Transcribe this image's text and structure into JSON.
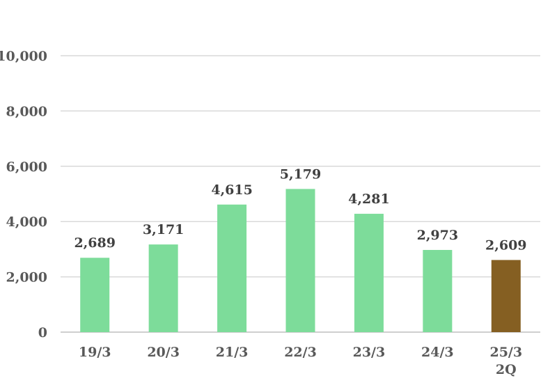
{
  "chart_data": {
    "type": "bar",
    "categories": [
      [
        "19/3"
      ],
      [
        "20/3"
      ],
      [
        "21/3"
      ],
      [
        "22/3"
      ],
      [
        "23/3"
      ],
      [
        "24/3"
      ],
      [
        "25/3",
        "2Q"
      ]
    ],
    "values": [
      2689,
      3171,
      4615,
      5179,
      4281,
      2973,
      2609
    ],
    "data_labels": [
      "2,689",
      "3,171",
      "4,615",
      "5,179",
      "4,281",
      "2,973",
      "2,609"
    ],
    "y_ticks": [
      0,
      2000,
      4000,
      6000,
      8000,
      10000
    ],
    "y_tick_labels": [
      "0",
      "2,000",
      "4,000",
      "6,000",
      "8,000",
      "10,000"
    ],
    "ylim": [
      0,
      10000
    ],
    "grid": true,
    "colors": [
      "#7ddc9a",
      "#7ddc9a",
      "#7ddc9a",
      "#7ddc9a",
      "#7ddc9a",
      "#7ddc9a",
      "#855f22"
    ],
    "title": "",
    "xlabel": "",
    "ylabel": ""
  }
}
